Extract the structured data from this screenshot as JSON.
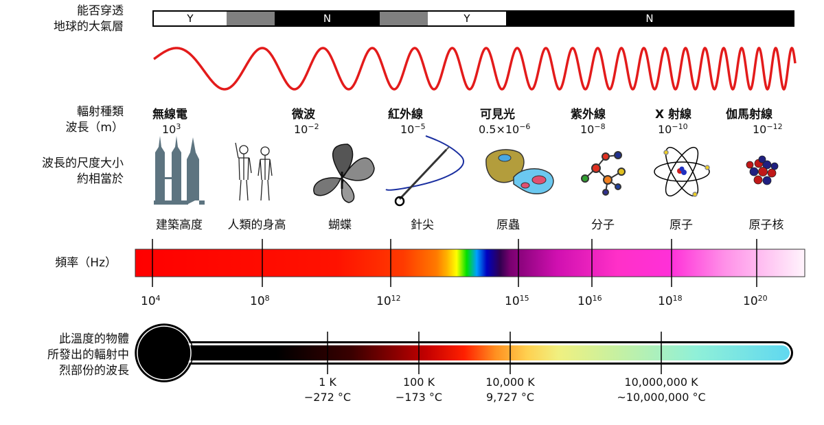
{
  "row_labels": {
    "atmosphere_1": "能否穿透",
    "atmosphere_2": "地球的大氣層",
    "type": "輻射種類",
    "wavelength": "波長（m）",
    "scale_1": "波長的尺度大小",
    "scale_2": "約相當於",
    "frequency": "頻率（Hz）",
    "temp_1": "此溫度的物體",
    "temp_2": "所發出的輻射中",
    "temp_3": "烈部份的波長"
  },
  "atmosphere": [
    {
      "label": "Y",
      "state": "yes"
    },
    {
      "label": "",
      "state": "partial"
    },
    {
      "label": "N",
      "state": "no"
    },
    {
      "label": "",
      "state": "partial"
    },
    {
      "label": "Y",
      "state": "yes"
    },
    {
      "label": "N",
      "state": "no"
    }
  ],
  "bands": [
    {
      "name": "無線電",
      "wl_base": "10",
      "wl_exp": "3"
    },
    {
      "name": "微波",
      "wl_base": "10",
      "wl_exp": "−2"
    },
    {
      "name": "紅外線",
      "wl_base": "10",
      "wl_exp": "−5"
    },
    {
      "name": "可見光",
      "wl_base": "0.5×10",
      "wl_exp": "−6"
    },
    {
      "name": "紫外線",
      "wl_base": "10",
      "wl_exp": "−8"
    },
    {
      "name": "X 射線",
      "wl_base": "10",
      "wl_exp": "−10"
    },
    {
      "name": "伽馬射線",
      "wl_base": "10",
      "wl_exp": "−12"
    }
  ],
  "objects": [
    "建築高度",
    "人類的身高",
    "蝴蝶",
    "針尖",
    "原蟲",
    "分子",
    "原子",
    "原子核"
  ],
  "frequencies": [
    {
      "base": "10",
      "exp": "4"
    },
    {
      "base": "10",
      "exp": "8"
    },
    {
      "base": "10",
      "exp": "12"
    },
    {
      "base": "10",
      "exp": "15"
    },
    {
      "base": "10",
      "exp": "16"
    },
    {
      "base": "10",
      "exp": "18"
    },
    {
      "base": "10",
      "exp": "20"
    }
  ],
  "temperatures": [
    {
      "k": "1 K",
      "c": "−272 °C"
    },
    {
      "k": "100 K",
      "c": "−173 °C"
    },
    {
      "k": "10,000 K",
      "c": "9,727 °C"
    },
    {
      "k": "10,000,000 K",
      "c": "~10,000,000 °C"
    }
  ],
  "colors": {
    "wave": "#e31b1b",
    "partial": "#808080",
    "bar_black": "#000000"
  },
  "icons": [
    "skyscraper-icon",
    "humans-icon",
    "butterfly-icon",
    "needle-icon",
    "protozoa-icon",
    "molecule-icon",
    "atom-icon",
    "nucleus-icon"
  ]
}
